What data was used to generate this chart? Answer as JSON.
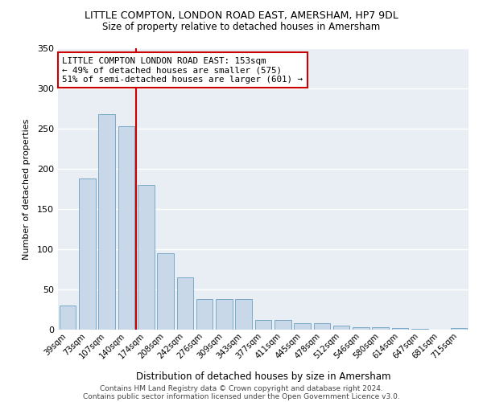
{
  "title_line1": "LITTLE COMPTON, LONDON ROAD EAST, AMERSHAM, HP7 9DL",
  "title_line2": "Size of property relative to detached houses in Amersham",
  "xlabel": "Distribution of detached houses by size in Amersham",
  "ylabel": "Number of detached properties",
  "bar_color": "#c8d8e8",
  "bar_edge_color": "#7aaac8",
  "background_color": "#e8eef4",
  "grid_color": "#ffffff",
  "categories": [
    "39sqm",
    "73sqm",
    "107sqm",
    "140sqm",
    "174sqm",
    "208sqm",
    "242sqm",
    "276sqm",
    "309sqm",
    "343sqm",
    "377sqm",
    "411sqm",
    "445sqm",
    "478sqm",
    "512sqm",
    "546sqm",
    "580sqm",
    "614sqm",
    "647sqm",
    "681sqm",
    "715sqm"
  ],
  "values": [
    30,
    188,
    268,
    253,
    180,
    95,
    65,
    38,
    38,
    38,
    12,
    12,
    8,
    8,
    5,
    3,
    3,
    2,
    1,
    0,
    2
  ],
  "vline_index": 3,
  "vline_color": "#cc0000",
  "annotation_text": "LITTLE COMPTON LONDON ROAD EAST: 153sqm\n← 49% of detached houses are smaller (575)\n51% of semi-detached houses are larger (601) →",
  "annotation_box_color": "#ffffff",
  "annotation_box_edge_color": "#cc0000",
  "ylim": [
    0,
    350
  ],
  "yticks": [
    0,
    50,
    100,
    150,
    200,
    250,
    300,
    350
  ],
  "footnote_line1": "Contains HM Land Registry data © Crown copyright and database right 2024.",
  "footnote_line2": "Contains public sector information licensed under the Open Government Licence v3.0."
}
